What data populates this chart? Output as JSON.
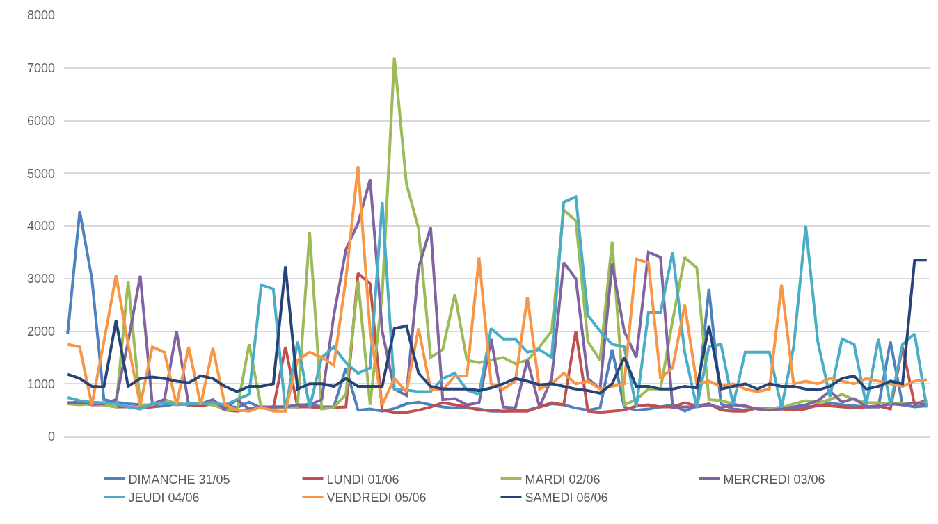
{
  "chart_data": {
    "type": "line",
    "categories": [
      null,
      null,
      null,
      null,
      null,
      null,
      null,
      null,
      null,
      null,
      null,
      null,
      null,
      null,
      null,
      null,
      null,
      null,
      null,
      null,
      null,
      null,
      null,
      null,
      null,
      null,
      null,
      null,
      null,
      null,
      null,
      null,
      null,
      null,
      null,
      null,
      null,
      null,
      null,
      null,
      null,
      null,
      null,
      null,
      null,
      null,
      null,
      null,
      null,
      null,
      null,
      null,
      null,
      null,
      null,
      null,
      null,
      null,
      null,
      null,
      null,
      null,
      null,
      null,
      null,
      null,
      null,
      null,
      null,
      null,
      null,
      null
    ],
    "ylim": [
      0,
      8000
    ],
    "yticks": [
      0,
      1000,
      2000,
      3000,
      4000,
      5000,
      6000,
      7000,
      8000
    ],
    "grid": "y",
    "legend": "bottom",
    "tick_labels": "y",
    "marker": "none",
    "line_style": "solid",
    "series": [
      {
        "name": "DIMANCHE 31/05",
        "color": "#4f81bd",
        "values": [
          1950,
          4280,
          3000,
          700,
          650,
          620,
          600,
          560,
          580,
          620,
          600,
          620,
          600,
          580,
          550,
          650,
          540,
          560,
          560,
          560,
          620,
          560,
          560,
          1300,
          500,
          520,
          480,
          530,
          620,
          650,
          600,
          560,
          540,
          540,
          520,
          480,
          480,
          500,
          500,
          560,
          620,
          600,
          540,
          500,
          540,
          1650,
          560,
          500,
          520,
          560,
          600,
          480,
          580,
          2800,
          620,
          520,
          500,
          540,
          520,
          560,
          520,
          560,
          580,
          640,
          600,
          580,
          560,
          560,
          1800,
          600,
          560,
          580
        ]
      },
      {
        "name": "LUNDI 01/06",
        "color": "#c0504d",
        "values": [
          620,
          650,
          600,
          600,
          560,
          560,
          540,
          560,
          700,
          620,
          600,
          580,
          620,
          500,
          480,
          520,
          560,
          540,
          1700,
          560,
          560,
          540,
          550,
          560,
          3100,
          2900,
          500,
          460,
          460,
          500,
          560,
          640,
          600,
          560,
          500,
          500,
          480,
          480,
          480,
          560,
          640,
          600,
          2000,
          480,
          460,
          480,
          500,
          580,
          600,
          560,
          560,
          640,
          580,
          620,
          500,
          480,
          480,
          540,
          520,
          520,
          500,
          520,
          600,
          580,
          560,
          540,
          560,
          580,
          520,
          1700,
          600,
          700
        ]
      },
      {
        "name": "MARDI 02/06",
        "color": "#9bbb59",
        "values": [
          620,
          600,
          620,
          600,
          560,
          2950,
          600,
          600,
          700,
          620,
          600,
          640,
          600,
          520,
          500,
          1750,
          540,
          520,
          560,
          560,
          3880,
          520,
          550,
          800,
          2950,
          600,
          2700,
          7200,
          4800,
          3950,
          1500,
          1650,
          2700,
          1450,
          1400,
          1450,
          1500,
          1380,
          1450,
          1700,
          2000,
          4300,
          4100,
          1800,
          1450,
          3700,
          600,
          700,
          900,
          900,
          2200,
          3400,
          3200,
          700,
          680,
          620,
          560,
          520,
          520,
          540,
          620,
          680,
          640,
          700,
          800,
          700,
          640,
          640,
          620,
          620,
          640,
          640
        ]
      },
      {
        "name": "MERCREDI 03/06",
        "color": "#8064a2",
        "values": [
          640,
          650,
          620,
          620,
          700,
          1800,
          3050,
          620,
          700,
          2000,
          600,
          620,
          700,
          520,
          700,
          520,
          560,
          560,
          560,
          600,
          600,
          700,
          2300,
          3550,
          4050,
          4880,
          2000,
          900,
          780,
          3200,
          3970,
          700,
          720,
          600,
          640,
          1850,
          560,
          540,
          1450,
          560,
          1100,
          3300,
          3000,
          1100,
          900,
          3280,
          2000,
          1500,
          3500,
          3400,
          550,
          560,
          560,
          600,
          550,
          600,
          580,
          520,
          500,
          520,
          560,
          600,
          680,
          860,
          650,
          720,
          560,
          560,
          620,
          600,
          640,
          600
        ]
      },
      {
        "name": "JEUDI 04/06",
        "color": "#4bacc6",
        "values": [
          740,
          680,
          650,
          640,
          620,
          560,
          520,
          620,
          640,
          600,
          620,
          620,
          640,
          600,
          700,
          800,
          2880,
          2800,
          500,
          1800,
          550,
          1500,
          1700,
          1400,
          1200,
          1300,
          4450,
          900,
          880,
          850,
          850,
          1100,
          1200,
          880,
          800,
          2050,
          1850,
          1850,
          1600,
          1650,
          1500,
          4450,
          4550,
          2300,
          2000,
          1750,
          1700,
          550,
          2350,
          2350,
          3500,
          1600,
          550,
          1700,
          1750,
          600,
          1600,
          1600,
          1600,
          550,
          1700,
          4000,
          1800,
          750,
          1850,
          1750,
          600,
          1850,
          600,
          1750,
          1950,
          550
        ]
      },
      {
        "name": "VENDREDI 05/06",
        "color": "#f79646",
        "values": [
          1750,
          1700,
          600,
          1800,
          3060,
          1750,
          600,
          1700,
          1600,
          600,
          1700,
          600,
          1680,
          600,
          500,
          480,
          560,
          480,
          480,
          1450,
          1600,
          1500,
          1350,
          3000,
          5130,
          2000,
          600,
          1100,
          850,
          2050,
          900,
          880,
          1150,
          1150,
          3400,
          1000,
          900,
          1050,
          2650,
          900,
          1000,
          1200,
          1000,
          1050,
          900,
          950,
          1000,
          3370,
          3300,
          1100,
          1300,
          2500,
          1000,
          1050,
          950,
          1000,
          900,
          850,
          900,
          2880,
          1000,
          1050,
          1000,
          1100,
          1050,
          1000,
          1100,
          1050,
          1000,
          950,
          1050,
          1080
        ]
      },
      {
        "name": "SAMEDI 06/06",
        "color": "#264478",
        "values": [
          1180,
          1100,
          950,
          940,
          2200,
          950,
          1100,
          1130,
          1100,
          1050,
          1020,
          1150,
          1100,
          950,
          850,
          950,
          950,
          1000,
          3230,
          900,
          1000,
          1000,
          950,
          1100,
          950,
          950,
          950,
          2050,
          2100,
          1200,
          950,
          900,
          900,
          900,
          870,
          920,
          1000,
          1100,
          1050,
          980,
          1000,
          950,
          900,
          870,
          820,
          1000,
          1500,
          950,
          950,
          900,
          900,
          950,
          920,
          2100,
          900,
          950,
          1000,
          900,
          1000,
          950,
          950,
          900,
          880,
          950,
          1100,
          1150,
          900,
          950,
          1050,
          1000,
          3350,
          3350
        ]
      }
    ]
  }
}
